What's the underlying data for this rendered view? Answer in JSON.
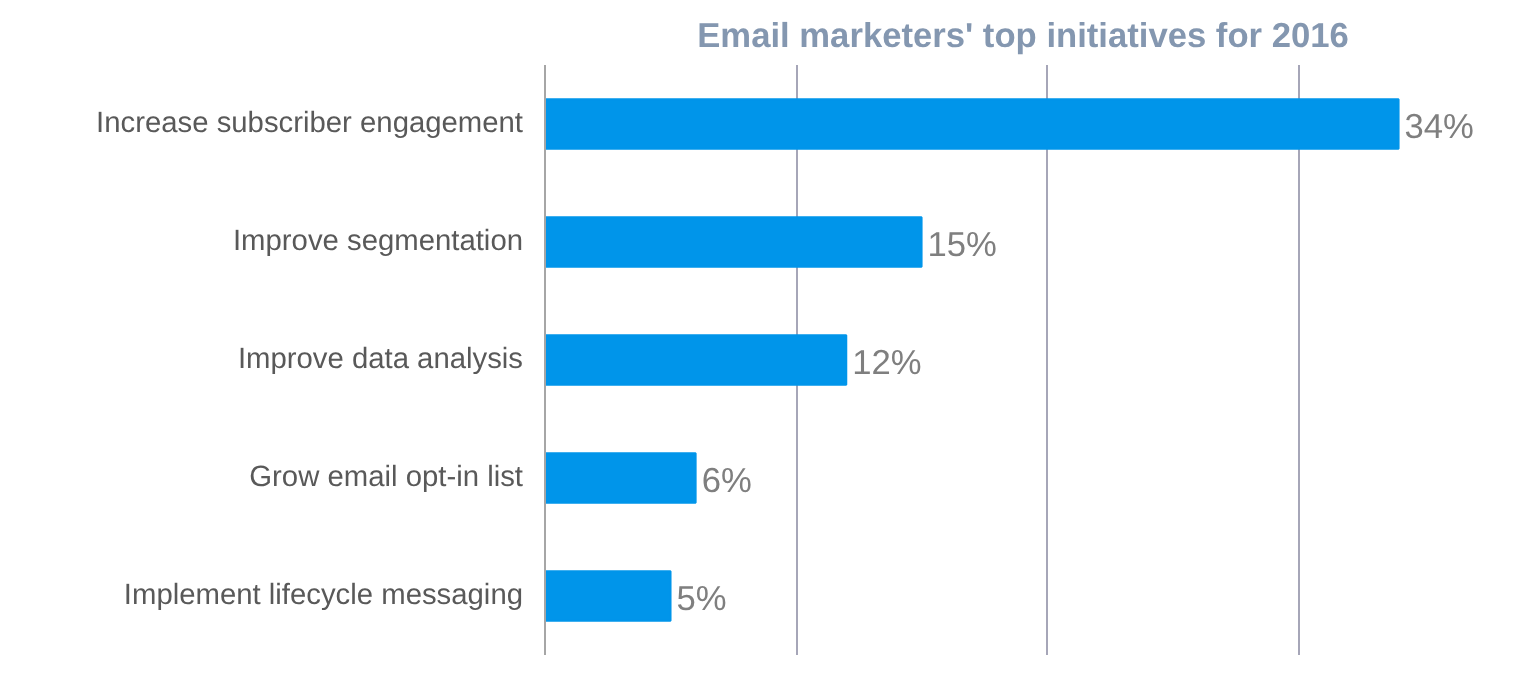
{
  "chart_data": {
    "type": "bar",
    "orientation": "horizontal",
    "title": "Email marketers' top initiatives for 2016",
    "categories": [
      "Increase subscriber engagement",
      "Improve segmentation",
      "Improve data analysis",
      "Grow email opt-in list",
      "Implement lifecycle messaging"
    ],
    "values": [
      34,
      15,
      12,
      6,
      5
    ],
    "value_labels": [
      "34%",
      "15%",
      "12%",
      "6%",
      "5%"
    ],
    "color": "#0095ea",
    "xticks": [
      {
        "value": 0,
        "label": null
      },
      {
        "value": 10,
        "label": null
      },
      {
        "value": 20,
        "label": null
      },
      {
        "value": 30,
        "label": null
      }
    ],
    "tick_labels": "y",
    "grid": "x"
  }
}
